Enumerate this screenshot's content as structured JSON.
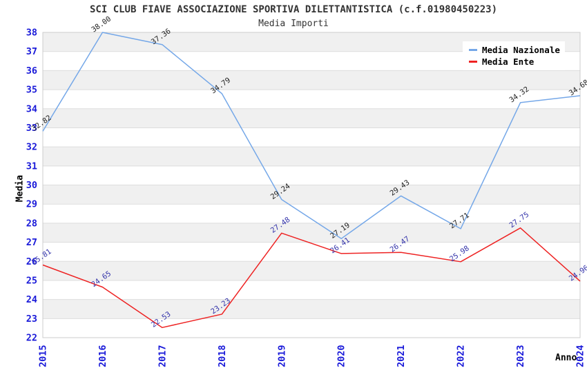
{
  "header": {
    "title": "SCI CLUB FIAVE ASSOCIAZIONE SPORTIVA DILETTANTISTICA (c.f.01980450223)",
    "subtitle": "Media Importi"
  },
  "chart_data": {
    "type": "line",
    "title": "SCI CLUB FIAVE ASSOCIAZIONE SPORTIVA DILETTANTISTICA (c.f.01980450223)",
    "subtitle": "Media Importi",
    "xlabel": "Anno",
    "ylabel": "Media",
    "x": [
      2015,
      2016,
      2017,
      2018,
      2019,
      2020,
      2021,
      2022,
      2023,
      2024
    ],
    "series": [
      {
        "name": "Media Nazionale",
        "color": "#74A7E8",
        "label_color": "#222222",
        "values": [
          32.82,
          38.0,
          37.36,
          34.79,
          29.24,
          27.19,
          29.43,
          27.71,
          34.32,
          34.68
        ]
      },
      {
        "name": "Media Ente",
        "color": "#EE2222",
        "label_color": "#3333AA",
        "values": [
          25.81,
          24.65,
          22.53,
          23.23,
          27.48,
          26.41,
          26.47,
          25.98,
          27.75,
          24.96
        ]
      }
    ],
    "ylim": [
      22,
      38
    ],
    "ytick_step": 1,
    "grid": true,
    "legend_position": "top-right",
    "styles": {
      "tick_color": "#1A1AD9",
      "grid_color": "#DDDDDD",
      "band_color": "#F0F0F0",
      "plot_border_color": "#CCCCCC",
      "axis_title_color": "#000000",
      "label_rotation_deg": -35,
      "tick_rotation_deg": -90
    }
  }
}
